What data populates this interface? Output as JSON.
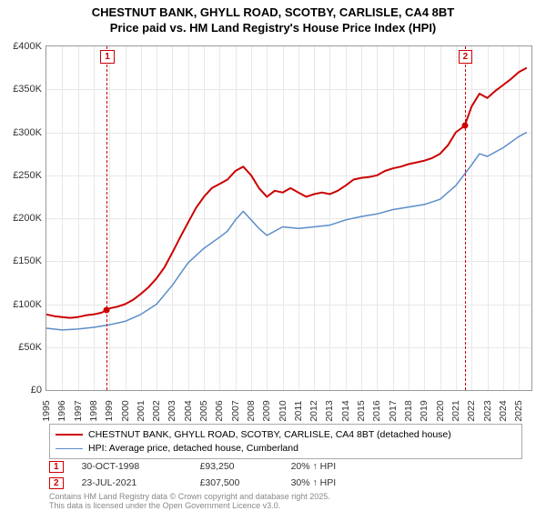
{
  "title": {
    "line1": "CHESTNUT BANK, GHYLL ROAD, SCOTBY, CARLISLE, CA4 8BT",
    "line2": "Price paid vs. HM Land Registry's House Price Index (HPI)"
  },
  "chart": {
    "type": "line",
    "background_color": "#ffffff",
    "grid_color": "#e8e8e8",
    "border_color": "#999999",
    "x": {
      "min": 1995,
      "max": 2025.8,
      "ticks": [
        1995,
        1996,
        1997,
        1998,
        1999,
        2000,
        2001,
        2002,
        2003,
        2004,
        2005,
        2006,
        2007,
        2008,
        2009,
        2010,
        2011,
        2012,
        2013,
        2014,
        2015,
        2016,
        2017,
        2018,
        2019,
        2020,
        2021,
        2022,
        2023,
        2024,
        2025
      ]
    },
    "y": {
      "min": 0,
      "max": 400000,
      "tick_step": 50000,
      "ticks_labels": [
        "£0",
        "£50K",
        "£100K",
        "£150K",
        "£200K",
        "£250K",
        "£300K",
        "£350K",
        "£400K"
      ],
      "label_fontsize": 11
    },
    "series": [
      {
        "name": "CHESTNUT BANK, GHYLL ROAD, SCOTBY, CARLISLE, CA4 8BT (detached house)",
        "color": "#cc0000",
        "line_width": 2,
        "points": [
          [
            1995,
            88000
          ],
          [
            1995.5,
            86000
          ],
          [
            1996,
            85000
          ],
          [
            1996.5,
            84000
          ],
          [
            1997,
            85000
          ],
          [
            1997.5,
            87000
          ],
          [
            1998,
            88000
          ],
          [
            1998.5,
            90000
          ],
          [
            1998.83,
            93250
          ],
          [
            1999,
            95000
          ],
          [
            1999.5,
            97000
          ],
          [
            2000,
            100000
          ],
          [
            2000.5,
            105000
          ],
          [
            2001,
            112000
          ],
          [
            2001.5,
            120000
          ],
          [
            2002,
            130000
          ],
          [
            2002.5,
            143000
          ],
          [
            2003,
            160000
          ],
          [
            2003.5,
            178000
          ],
          [
            2004,
            195000
          ],
          [
            2004.5,
            212000
          ],
          [
            2005,
            225000
          ],
          [
            2005.5,
            235000
          ],
          [
            2006,
            240000
          ],
          [
            2006.5,
            245000
          ],
          [
            2007,
            255000
          ],
          [
            2007.5,
            260000
          ],
          [
            2008,
            250000
          ],
          [
            2008.5,
            235000
          ],
          [
            2009,
            225000
          ],
          [
            2009.5,
            232000
          ],
          [
            2010,
            230000
          ],
          [
            2010.5,
            235000
          ],
          [
            2011,
            230000
          ],
          [
            2011.5,
            225000
          ],
          [
            2012,
            228000
          ],
          [
            2012.5,
            230000
          ],
          [
            2013,
            228000
          ],
          [
            2013.5,
            232000
          ],
          [
            2014,
            238000
          ],
          [
            2014.5,
            245000
          ],
          [
            2015,
            247000
          ],
          [
            2015.5,
            248000
          ],
          [
            2016,
            250000
          ],
          [
            2016.5,
            255000
          ],
          [
            2017,
            258000
          ],
          [
            2017.5,
            260000
          ],
          [
            2018,
            263000
          ],
          [
            2018.5,
            265000
          ],
          [
            2019,
            267000
          ],
          [
            2019.5,
            270000
          ],
          [
            2020,
            275000
          ],
          [
            2020.5,
            285000
          ],
          [
            2021,
            300000
          ],
          [
            2021.56,
            307500
          ],
          [
            2022,
            330000
          ],
          [
            2022.5,
            345000
          ],
          [
            2023,
            340000
          ],
          [
            2023.5,
            348000
          ],
          [
            2024,
            355000
          ],
          [
            2024.5,
            362000
          ],
          [
            2025,
            370000
          ],
          [
            2025.5,
            375000
          ]
        ]
      },
      {
        "name": "HPI: Average price, detached house, Cumberland",
        "color": "#5b8dc9",
        "line_width": 1.5,
        "points": [
          [
            1995,
            72000
          ],
          [
            1996,
            70000
          ],
          [
            1997,
            71000
          ],
          [
            1998,
            73000
          ],
          [
            1999,
            76000
          ],
          [
            2000,
            80000
          ],
          [
            2001,
            88000
          ],
          [
            2002,
            100000
          ],
          [
            2003,
            122000
          ],
          [
            2004,
            148000
          ],
          [
            2005,
            165000
          ],
          [
            2006,
            178000
          ],
          [
            2006.5,
            185000
          ],
          [
            2007,
            198000
          ],
          [
            2007.5,
            208000
          ],
          [
            2008,
            198000
          ],
          [
            2008.5,
            188000
          ],
          [
            2009,
            180000
          ],
          [
            2010,
            190000
          ],
          [
            2011,
            188000
          ],
          [
            2012,
            190000
          ],
          [
            2013,
            192000
          ],
          [
            2014,
            198000
          ],
          [
            2015,
            202000
          ],
          [
            2016,
            205000
          ],
          [
            2017,
            210000
          ],
          [
            2018,
            213000
          ],
          [
            2019,
            216000
          ],
          [
            2020,
            222000
          ],
          [
            2021,
            238000
          ],
          [
            2022,
            262000
          ],
          [
            2022.5,
            275000
          ],
          [
            2023,
            272000
          ],
          [
            2024,
            282000
          ],
          [
            2025,
            295000
          ],
          [
            2025.5,
            300000
          ]
        ]
      }
    ],
    "markers": [
      {
        "id": "1",
        "x": 1998.83,
        "y": 93250,
        "color": "#cc0000"
      },
      {
        "id": "2",
        "x": 2021.56,
        "y": 307500,
        "color": "#cc0000"
      }
    ]
  },
  "legend": {
    "items": [
      {
        "color": "#cc0000",
        "width": 2,
        "label": "CHESTNUT BANK, GHYLL ROAD, SCOTBY, CARLISLE, CA4 8BT (detached house)"
      },
      {
        "color": "#5b8dc9",
        "width": 1.5,
        "label": "HPI: Average price, detached house, Cumberland"
      }
    ]
  },
  "sales": [
    {
      "id": "1",
      "color": "#cc0000",
      "date": "30-OCT-1998",
      "price": "£93,250",
      "diff": "20% ↑ HPI"
    },
    {
      "id": "2",
      "color": "#cc0000",
      "date": "23-JUL-2021",
      "price": "£307,500",
      "diff": "30% ↑ HPI"
    }
  ],
  "footnote": {
    "line1": "Contains HM Land Registry data © Crown copyright and database right 2025.",
    "line2": "This data is licensed under the Open Government Licence v3.0."
  }
}
